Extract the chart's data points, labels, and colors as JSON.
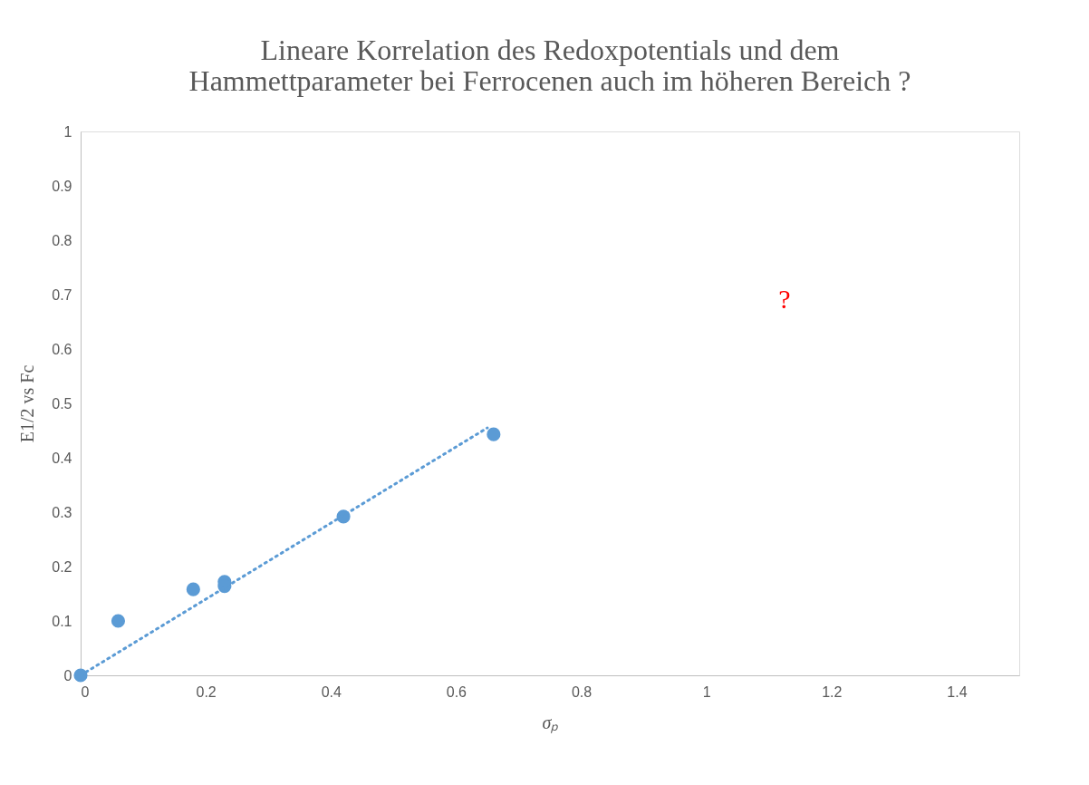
{
  "chart_data": {
    "type": "scatter",
    "title": [
      "Lineare Korrelation des Redoxpotentials  und dem",
      "Hammettparameter bei Ferrocenen auch im höheren Bereich ?"
    ],
    "xlabel": "σₚ",
    "ylabel": "E1/2 vs Fc",
    "series": [
      {
        "color": "#5b9bd5",
        "marker": "circle",
        "x": [
          0,
          0.06,
          0.18,
          0.23,
          0.23,
          0.42,
          0.66
        ],
        "values": [
          0,
          0.1,
          0.158,
          0.172,
          0.164,
          0.292,
          0.443
        ]
      },
      {
        "type": "line",
        "color": "#5b9bd5",
        "line_style": "dotted",
        "x": [
          0,
          0.65
        ],
        "values": [
          0,
          0.455
        ]
      }
    ],
    "annotations": [
      "?"
    ],
    "xlim": [
      0,
      1.5
    ],
    "xticks": [
      0,
      0.2,
      0.4,
      0.6,
      0.8,
      1,
      1.2,
      1.4
    ],
    "ylim": [
      0,
      1
    ],
    "yticks": [
      0,
      0.1,
      0.2,
      0.3,
      0.4,
      0.5,
      0.6,
      0.7,
      0.8,
      0.9,
      1
    ],
    "grid": false
  }
}
